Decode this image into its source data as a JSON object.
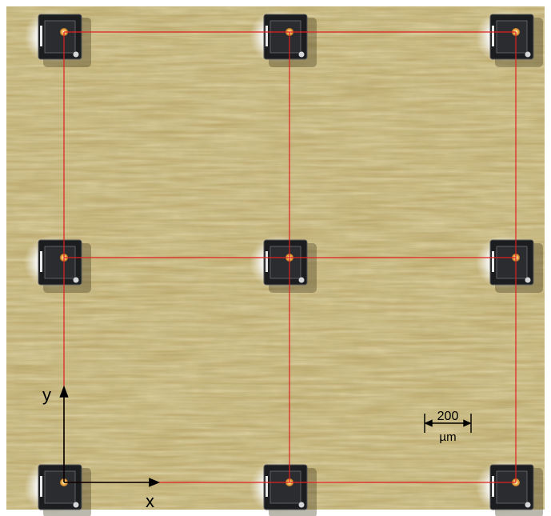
{
  "axes": {
    "x_label": "x",
    "y_label": "y"
  },
  "scale_bar": {
    "value": "200",
    "unit": "µm"
  },
  "grid": {
    "rows": 3,
    "cols": 3
  },
  "colors": {
    "substrate": "#b9a565",
    "substrate_light": "#d8cc8c",
    "substrate_dark": "#8f7d45",
    "grid_line": "#e02020",
    "chip": "#1c1d1f",
    "glow": "#f2f3f5",
    "axis": "#000000"
  }
}
